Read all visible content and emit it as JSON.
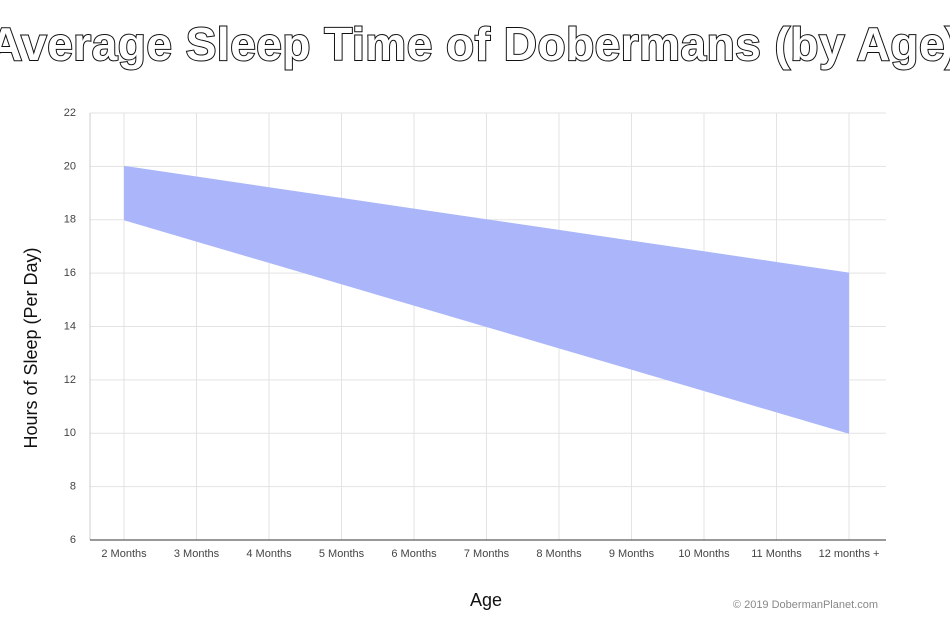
{
  "chart_data": {
    "type": "range-area",
    "title": "Average Sleep Time of Dobermans (by Age)",
    "x_label": "Age",
    "y_label": "Hours of Sleep (Per Day)",
    "credit": "© 2019 DobermanPlanet.com",
    "categories": [
      "2 Months",
      "3 Months",
      "4 Months",
      "5 Months",
      "6 Months",
      "7 Months",
      "8 Months",
      "9 Months",
      "10 Months",
      "11 Months",
      "12 months +"
    ],
    "low": [
      18,
      17.2,
      16.4,
      15.6,
      14.8,
      14,
      13.2,
      12.4,
      11.6,
      10.8,
      10
    ],
    "high": [
      20,
      19.6,
      19.2,
      18.8,
      18.4,
      18,
      17.6,
      17.2,
      16.8,
      16.4,
      16
    ],
    "color": "#aab6f9",
    "ylim": [
      6,
      22
    ],
    "yticks": [
      6,
      8,
      10,
      12,
      14,
      16,
      18,
      20,
      22
    ],
    "grid": true
  }
}
